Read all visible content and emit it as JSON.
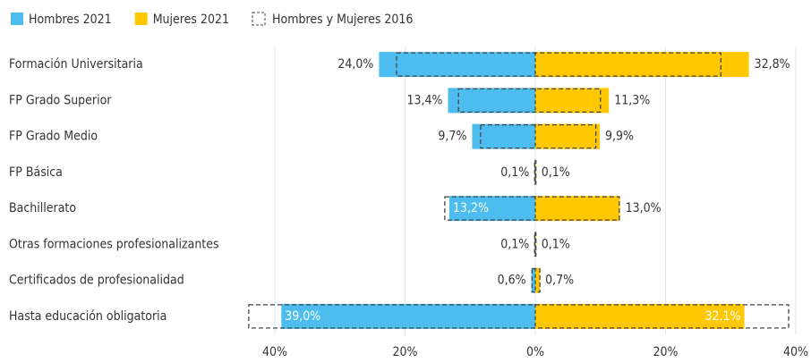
{
  "chart_data": {
    "type": "butterfly",
    "categories": [
      "Formación Universitaria",
      "FP Grado Superior",
      "FP Grado Medio",
      "FP Básica",
      "Bachillerato",
      "Otras formaciones profesionalizantes",
      "Certificados de profesionalidad",
      "Hasta educación obligatoria"
    ],
    "series": [
      {
        "name": "Hombres 2021",
        "color": "#4cbdee",
        "side": "left",
        "values": [
          24.0,
          13.4,
          9.7,
          0.1,
          13.2,
          0.1,
          0.6,
          39.0
        ],
        "value_labels": [
          "24,0%",
          "13,4%",
          "9,7%",
          "0,1%",
          "13,2%",
          "0,1%",
          "0,6%",
          "39,0%"
        ]
      },
      {
        "name": "Mujeres 2021",
        "color": "#ffc800",
        "side": "right",
        "values": [
          32.8,
          11.3,
          9.9,
          0.1,
          13.0,
          0.1,
          0.7,
          32.1
        ],
        "value_labels": [
          "32,8%",
          "11,3%",
          "9,9%",
          "0,1%",
          "13,0%",
          "0,1%",
          "0,7%",
          "32,1%"
        ]
      }
    ],
    "reference": {
      "name": "Hombres y Mujeres 2016",
      "left": [
        21.3,
        11.8,
        8.4,
        0.1,
        13.9,
        0.1,
        0.5,
        44.0
      ],
      "right": [
        28.5,
        10.0,
        9.3,
        0.1,
        12.9,
        0.1,
        0.7,
        38.9
      ]
    },
    "xlim": [
      -40,
      40
    ],
    "xticks": [
      {
        "value": -40,
        "label": "40%"
      },
      {
        "value": -20,
        "label": "20%"
      },
      {
        "value": 0,
        "label": "0%"
      },
      {
        "value": 20,
        "label": "20%"
      },
      {
        "value": 40,
        "label": "40%"
      }
    ],
    "grid": true
  }
}
